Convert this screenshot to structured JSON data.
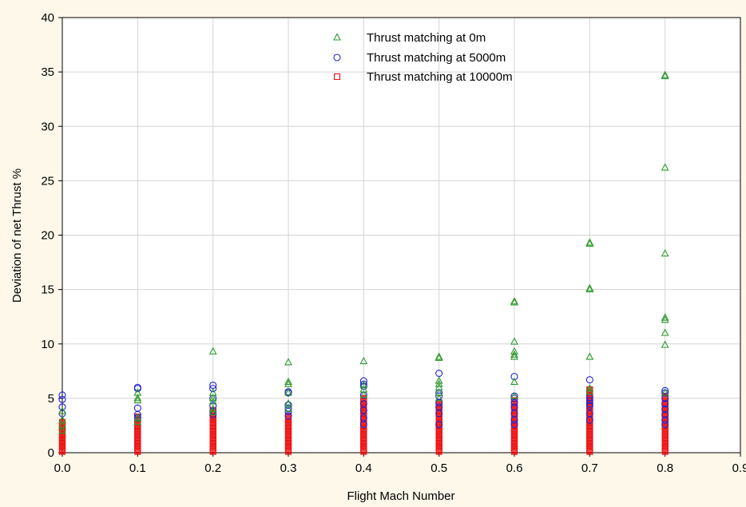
{
  "chart_data": {
    "type": "scatter",
    "title": "",
    "xlabel": "Flight Mach Number",
    "ylabel": "Deviation of net Thrust %",
    "xlim": [
      0,
      0.9
    ],
    "ylim": [
      0,
      40
    ],
    "x_ticks": [
      "0.0",
      "0.1",
      "0.2",
      "0.3",
      "0.4",
      "0.5",
      "0.6",
      "0.7",
      "0.8",
      "0.9"
    ],
    "y_ticks": [
      "0",
      "5",
      "10",
      "15",
      "20",
      "25",
      "30",
      "35",
      "40"
    ],
    "grid": true,
    "legend_position": "top-center",
    "series": [
      {
        "name": "Thrust matching at 0m",
        "marker": "triangle",
        "color": "#2e9a2e",
        "points": [
          [
            0.0,
            3.0
          ],
          [
            0.0,
            3.8
          ],
          [
            0.0,
            2.5
          ],
          [
            0.0,
            2.0
          ],
          [
            0.1,
            5.5
          ],
          [
            0.1,
            5.0
          ],
          [
            0.1,
            4.8
          ],
          [
            0.1,
            3.2
          ],
          [
            0.1,
            2.8
          ],
          [
            0.2,
            9.3
          ],
          [
            0.2,
            5.5
          ],
          [
            0.2,
            5.0
          ],
          [
            0.2,
            4.7
          ],
          [
            0.2,
            4.0
          ],
          [
            0.2,
            3.7
          ],
          [
            0.3,
            8.3
          ],
          [
            0.3,
            6.5
          ],
          [
            0.3,
            6.3
          ],
          [
            0.3,
            5.5
          ],
          [
            0.3,
            4.5
          ],
          [
            0.3,
            4.0
          ],
          [
            0.4,
            8.4
          ],
          [
            0.4,
            6.2
          ],
          [
            0.4,
            5.8
          ],
          [
            0.4,
            5.3
          ],
          [
            0.5,
            8.8
          ],
          [
            0.5,
            8.7
          ],
          [
            0.5,
            6.6
          ],
          [
            0.5,
            6.3
          ],
          [
            0.5,
            6.0
          ],
          [
            0.5,
            5.5
          ],
          [
            0.5,
            5.0
          ],
          [
            0.6,
            13.9
          ],
          [
            0.6,
            13.8
          ],
          [
            0.6,
            10.2
          ],
          [
            0.6,
            9.3
          ],
          [
            0.6,
            9.0
          ],
          [
            0.6,
            8.8
          ],
          [
            0.6,
            6.5
          ],
          [
            0.6,
            5.2
          ],
          [
            0.7,
            19.3
          ],
          [
            0.7,
            19.2
          ],
          [
            0.7,
            15.1
          ],
          [
            0.7,
            15.0
          ],
          [
            0.7,
            8.8
          ],
          [
            0.7,
            5.9
          ],
          [
            0.7,
            5.6
          ],
          [
            0.8,
            34.7
          ],
          [
            0.8,
            34.6
          ],
          [
            0.8,
            26.2
          ],
          [
            0.8,
            18.3
          ],
          [
            0.8,
            12.4
          ],
          [
            0.8,
            12.2
          ],
          [
            0.8,
            11.0
          ],
          [
            0.8,
            9.9
          ],
          [
            0.8,
            5.5
          ]
        ]
      },
      {
        "name": "Thrust matching at 5000m",
        "marker": "circle",
        "color": "#2323d8",
        "points": [
          [
            0.0,
            5.3
          ],
          [
            0.0,
            4.9
          ],
          [
            0.0,
            4.2
          ],
          [
            0.0,
            3.6
          ],
          [
            0.1,
            6.0
          ],
          [
            0.1,
            5.9
          ],
          [
            0.1,
            4.1
          ],
          [
            0.1,
            3.5
          ],
          [
            0.1,
            3.2
          ],
          [
            0.2,
            6.2
          ],
          [
            0.2,
            5.9
          ],
          [
            0.2,
            5.0
          ],
          [
            0.2,
            4.3
          ],
          [
            0.2,
            3.8
          ],
          [
            0.2,
            3.5
          ],
          [
            0.3,
            5.6
          ],
          [
            0.3,
            5.5
          ],
          [
            0.3,
            4.4
          ],
          [
            0.3,
            4.1
          ],
          [
            0.3,
            3.8
          ],
          [
            0.3,
            3.4
          ],
          [
            0.4,
            6.6
          ],
          [
            0.4,
            6.3
          ],
          [
            0.4,
            6.1
          ],
          [
            0.4,
            5.3
          ],
          [
            0.4,
            4.5
          ],
          [
            0.4,
            3.9
          ],
          [
            0.4,
            3.2
          ],
          [
            0.4,
            2.6
          ],
          [
            0.5,
            7.3
          ],
          [
            0.5,
            5.5
          ],
          [
            0.5,
            5.2
          ],
          [
            0.5,
            4.6
          ],
          [
            0.5,
            4.2
          ],
          [
            0.5,
            3.6
          ],
          [
            0.5,
            2.6
          ],
          [
            0.6,
            7.0
          ],
          [
            0.6,
            5.2
          ],
          [
            0.6,
            5.0
          ],
          [
            0.6,
            4.6
          ],
          [
            0.6,
            4.2
          ],
          [
            0.6,
            3.6
          ],
          [
            0.6,
            3.0
          ],
          [
            0.6,
            2.6
          ],
          [
            0.7,
            6.7
          ],
          [
            0.7,
            5.1
          ],
          [
            0.7,
            4.8
          ],
          [
            0.7,
            4.5
          ],
          [
            0.7,
            4.3
          ],
          [
            0.7,
            3.6
          ],
          [
            0.7,
            3.0
          ],
          [
            0.8,
            5.7
          ],
          [
            0.8,
            5.5
          ],
          [
            0.8,
            5.0
          ],
          [
            0.8,
            4.5
          ],
          [
            0.8,
            4.0
          ],
          [
            0.8,
            3.5
          ],
          [
            0.8,
            3.0
          ],
          [
            0.8,
            2.6
          ]
        ]
      },
      {
        "name": "Thrust matching at 10000m",
        "marker": "square",
        "color": "#ee1111",
        "columns": [
          {
            "x": 0.0,
            "ymax": 2.8
          },
          {
            "x": 0.1,
            "ymax": 3.3
          },
          {
            "x": 0.2,
            "ymax": 3.9
          },
          {
            "x": 0.3,
            "ymax": 3.4
          },
          {
            "x": 0.4,
            "ymax": 5.0
          },
          {
            "x": 0.5,
            "ymax": 4.6
          },
          {
            "x": 0.6,
            "ymax": 4.8
          },
          {
            "x": 0.7,
            "ymax": 5.8
          },
          {
            "x": 0.8,
            "ymax": 5.2
          }
        ]
      }
    ]
  }
}
